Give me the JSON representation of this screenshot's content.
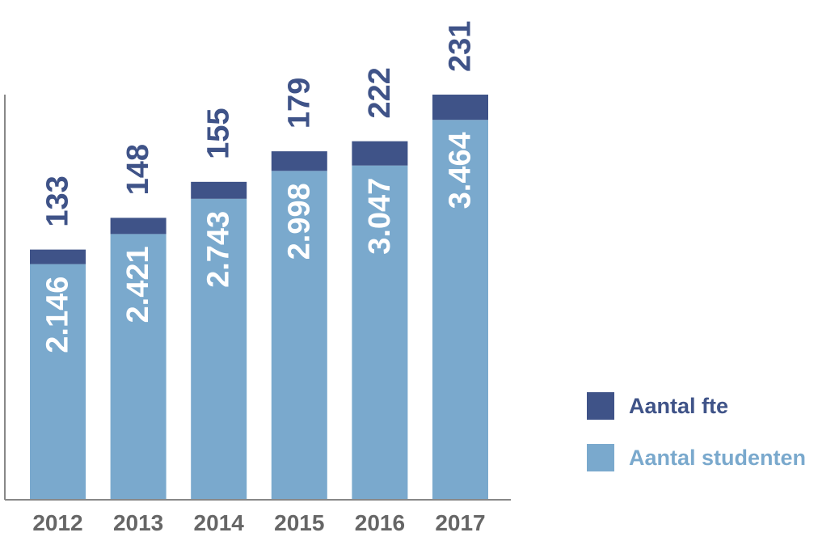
{
  "colors": {
    "fte": "#3f5388",
    "students": "#7aa9cd",
    "axis": "#888888",
    "tick_text": "#666666"
  },
  "legend": {
    "fte_label": "Aantal fte",
    "students_label": "Aantal studenten"
  },
  "chart_data": {
    "type": "bar",
    "stacked": true,
    "categories": [
      "2012",
      "2013",
      "2014",
      "2015",
      "2016",
      "2017"
    ],
    "series": [
      {
        "name": "Aantal studenten",
        "values": [
          2146,
          2421,
          2743,
          2998,
          3047,
          3464
        ],
        "labels": [
          "2.146",
          "2.421",
          "2.743",
          "2.998",
          "3.047",
          "3.464"
        ]
      },
      {
        "name": "Aantal fte",
        "values": [
          133,
          148,
          155,
          179,
          222,
          231
        ],
        "labels": [
          "133",
          "148",
          "155",
          "179",
          "222",
          "231"
        ]
      }
    ],
    "title": "",
    "xlabel": "",
    "ylabel": "",
    "legend_position": "right",
    "grid": false
  }
}
